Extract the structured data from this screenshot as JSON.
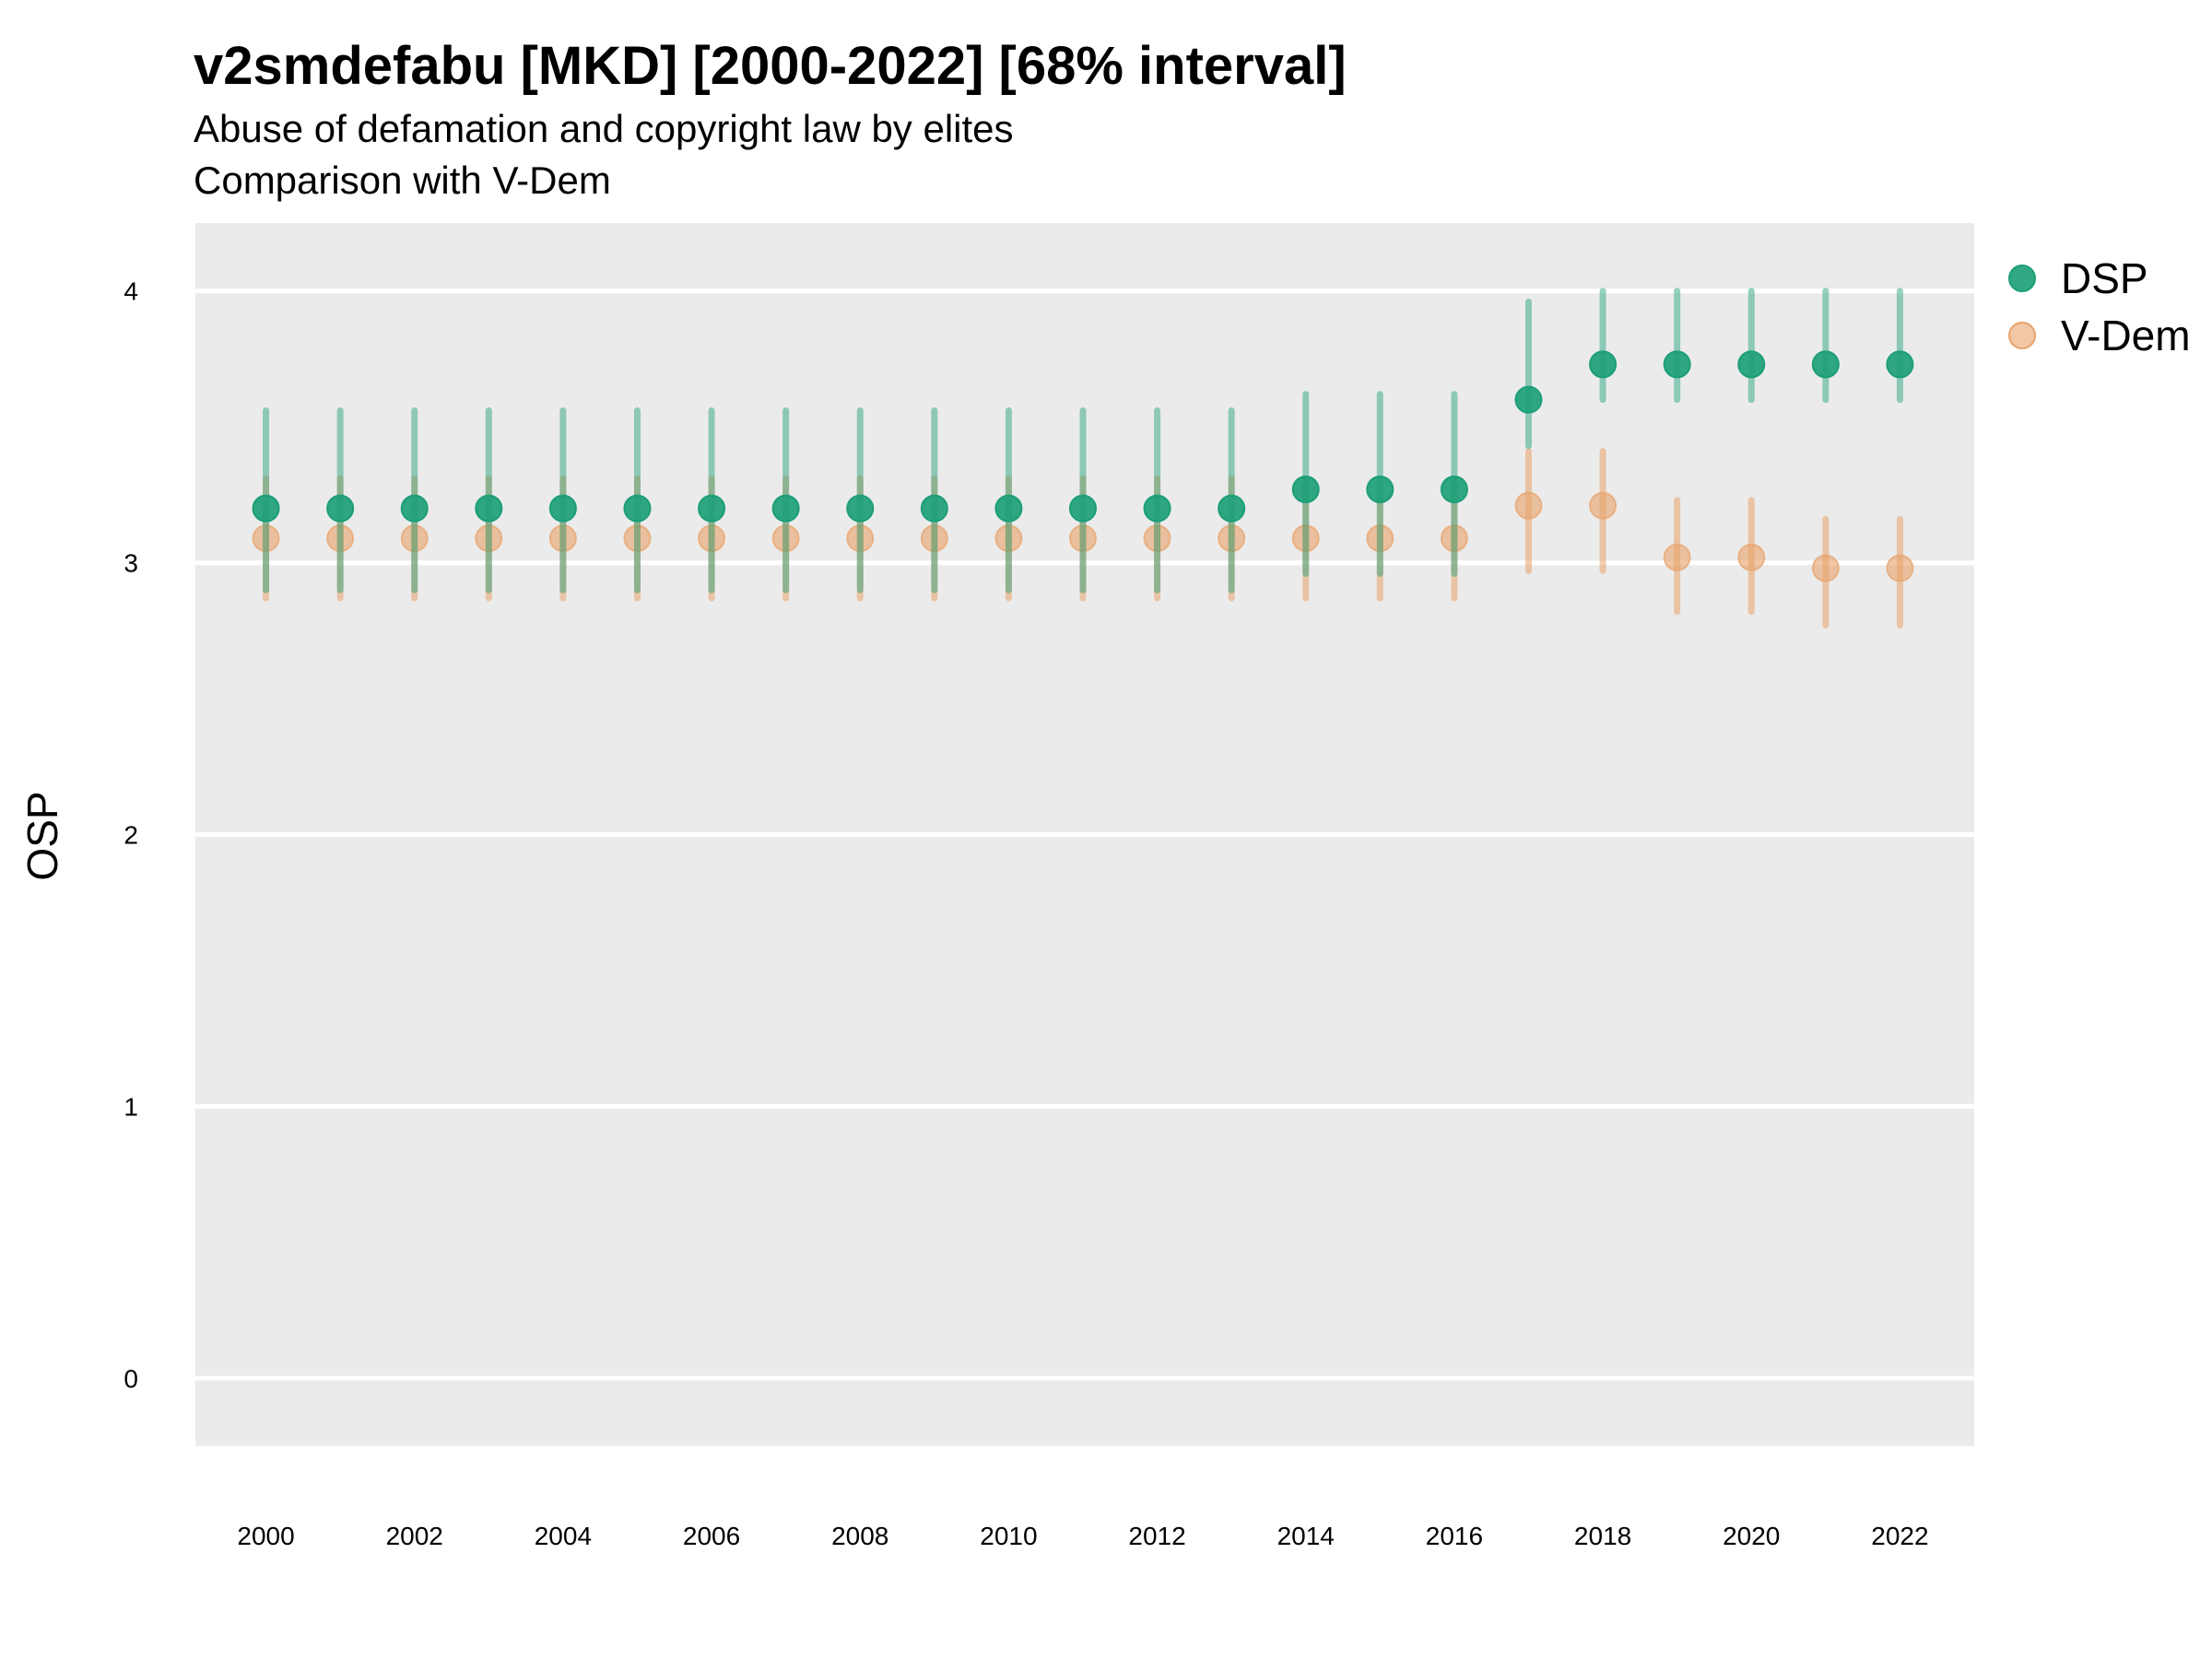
{
  "chart_data": {
    "type": "scatter",
    "title": "v2smdefabu [MKD] [2000-2022] [68% interval]",
    "subtitle": "Abuse of defamation and copyright law by elites",
    "subtitle2": "Comparison with V-Dem",
    "xlabel": "",
    "ylabel": "OSP",
    "xlim": [
      1999.05,
      2023.0
    ],
    "ylim": [
      -0.25,
      4.25
    ],
    "x_ticks": [
      "2000",
      "2002",
      "2004",
      "2006",
      "2008",
      "2010",
      "2012",
      "2014",
      "2016",
      "2018",
      "2020",
      "2022"
    ],
    "y_ticks": [
      "0",
      "1",
      "2",
      "3",
      "4"
    ],
    "grid": true,
    "legend_position": "right",
    "x": [
      2000,
      2001,
      2002,
      2003,
      2004,
      2005,
      2006,
      2007,
      2008,
      2009,
      2010,
      2011,
      2012,
      2013,
      2014,
      2015,
      2016,
      2017,
      2018,
      2019,
      2020,
      2021,
      2022
    ],
    "series": [
      {
        "name": "DSP",
        "color": "#1b9e77",
        "values": [
          3.2,
          3.2,
          3.2,
          3.2,
          3.2,
          3.2,
          3.2,
          3.2,
          3.2,
          3.2,
          3.2,
          3.2,
          3.2,
          3.2,
          3.27,
          3.27,
          3.27,
          3.6,
          3.73,
          3.73,
          3.73,
          3.73,
          3.73
        ],
        "lower": [
          2.9,
          2.9,
          2.9,
          2.9,
          2.9,
          2.9,
          2.9,
          2.9,
          2.9,
          2.9,
          2.9,
          2.9,
          2.9,
          2.9,
          2.96,
          2.96,
          2.96,
          3.43,
          3.6,
          3.6,
          3.6,
          3.6,
          3.6
        ],
        "upper": [
          3.56,
          3.56,
          3.56,
          3.56,
          3.56,
          3.56,
          3.56,
          3.56,
          3.56,
          3.56,
          3.56,
          3.56,
          3.56,
          3.56,
          3.62,
          3.62,
          3.62,
          3.96,
          4.0,
          4.0,
          4.0,
          4.0,
          4.0
        ]
      },
      {
        "name": "V-Dem",
        "color": "#e8a26a",
        "values": [
          3.09,
          3.09,
          3.09,
          3.09,
          3.09,
          3.09,
          3.09,
          3.09,
          3.09,
          3.09,
          3.09,
          3.09,
          3.09,
          3.09,
          3.09,
          3.09,
          3.09,
          3.21,
          3.21,
          3.02,
          3.02,
          2.98,
          2.98
        ],
        "lower": [
          2.87,
          2.87,
          2.87,
          2.87,
          2.87,
          2.87,
          2.87,
          2.87,
          2.87,
          2.87,
          2.87,
          2.87,
          2.87,
          2.87,
          2.87,
          2.87,
          2.87,
          2.97,
          2.97,
          2.82,
          2.82,
          2.77,
          2.77
        ],
        "upper": [
          3.31,
          3.31,
          3.31,
          3.31,
          3.31,
          3.31,
          3.31,
          3.31,
          3.31,
          3.31,
          3.31,
          3.31,
          3.31,
          3.31,
          3.31,
          3.31,
          3.31,
          3.41,
          3.41,
          3.23,
          3.23,
          3.16,
          3.16
        ]
      }
    ]
  }
}
